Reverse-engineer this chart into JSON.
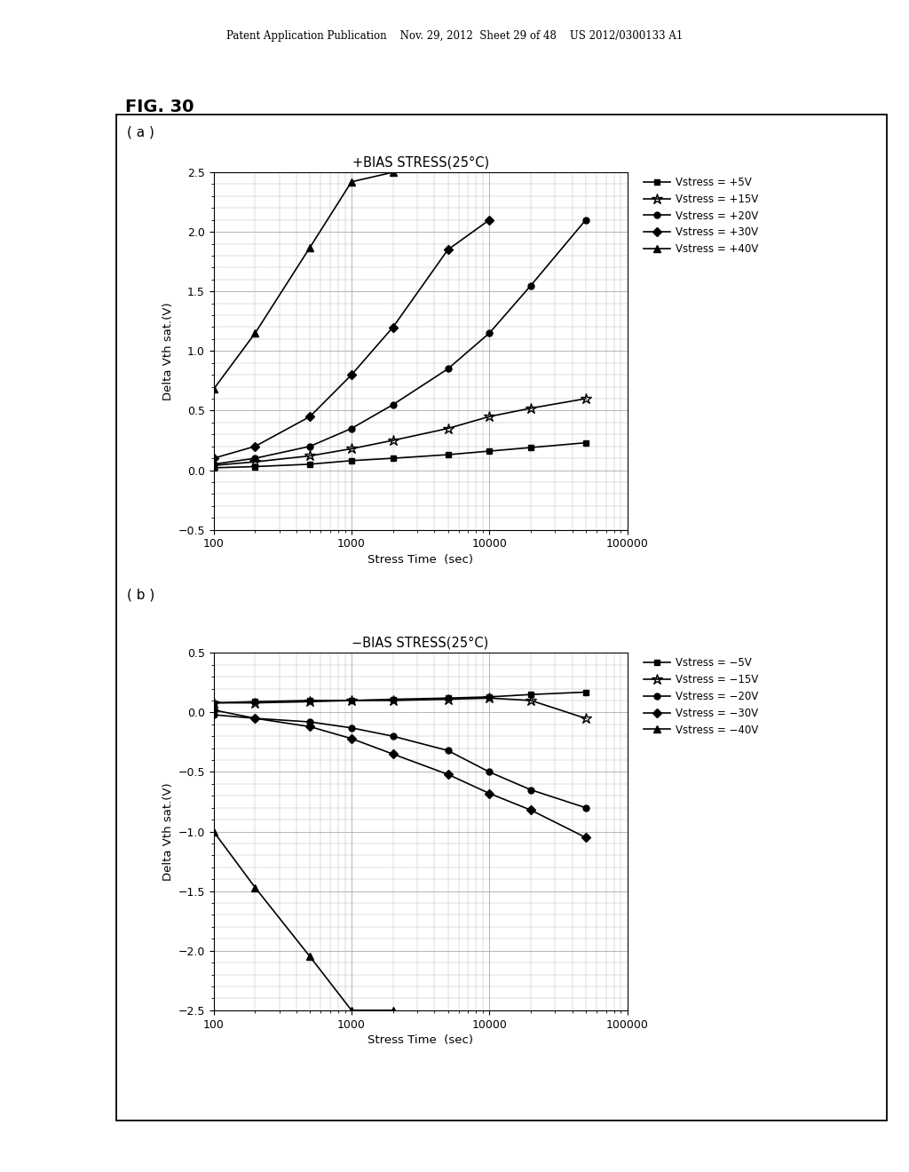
{
  "fig_label": "FIG. 30",
  "header_text": "Patent Application Publication    Nov. 29, 2012  Sheet 29 of 48    US 2012/0300133 A1",
  "panel_a": {
    "title": "+BIAS STRESS(25°C)",
    "xlabel": "Stress Time  (sec)",
    "ylabel": "Delta Vth sat.(V)",
    "xlim": [
      100,
      100000
    ],
    "ylim": [
      -0.5,
      2.5
    ],
    "yticks": [
      -0.5,
      0.0,
      0.5,
      1.0,
      1.5,
      2.0,
      2.5
    ],
    "series": [
      {
        "label": "Vstress = +5V",
        "marker": "s",
        "x": [
          100,
          200,
          500,
          1000,
          2000,
          5000,
          10000,
          20000,
          50000
        ],
        "y": [
          0.02,
          0.03,
          0.05,
          0.08,
          0.1,
          0.13,
          0.16,
          0.19,
          0.23
        ]
      },
      {
        "label": "Vstress = +15V",
        "marker": "*",
        "x": [
          100,
          200,
          500,
          1000,
          2000,
          5000,
          10000,
          20000,
          50000
        ],
        "y": [
          0.04,
          0.07,
          0.12,
          0.18,
          0.25,
          0.35,
          0.45,
          0.52,
          0.6
        ]
      },
      {
        "label": "Vstress = +20V",
        "marker": "o",
        "x": [
          100,
          200,
          500,
          1000,
          2000,
          5000,
          10000,
          20000,
          50000
        ],
        "y": [
          0.05,
          0.1,
          0.2,
          0.35,
          0.55,
          0.85,
          1.15,
          1.55,
          2.1
        ]
      },
      {
        "label": "Vstress = +30V",
        "marker": "D",
        "x": [
          100,
          200,
          500,
          1000,
          2000,
          5000,
          10000
        ],
        "y": [
          0.1,
          0.2,
          0.45,
          0.8,
          1.2,
          1.85,
          2.1
        ]
      },
      {
        "label": "Vstress = +40V",
        "marker": "^",
        "x": [
          100,
          200,
          500,
          1000,
          2000
        ],
        "y": [
          0.68,
          1.15,
          1.87,
          2.42,
          2.5
        ]
      }
    ]
  },
  "panel_b": {
    "title": "−BIAS STRESS(25°C)",
    "xlabel": "Stress Time  (sec)",
    "ylabel": "Delta Vth sat.(V)",
    "xlim": [
      100,
      100000
    ],
    "ylim": [
      -2.5,
      0.5
    ],
    "yticks": [
      -2.5,
      -2.0,
      -1.5,
      -1.0,
      -0.5,
      0.0,
      0.5
    ],
    "series": [
      {
        "label": "Vstress = −5V",
        "marker": "s",
        "x": [
          100,
          200,
          500,
          1000,
          2000,
          5000,
          10000,
          20000,
          50000
        ],
        "y": [
          0.08,
          0.09,
          0.1,
          0.1,
          0.11,
          0.12,
          0.13,
          0.15,
          0.17
        ]
      },
      {
        "label": "Vstress = −15V",
        "marker": "*",
        "x": [
          100,
          200,
          500,
          1000,
          2000,
          5000,
          10000,
          20000,
          50000
        ],
        "y": [
          0.08,
          0.08,
          0.09,
          0.1,
          0.1,
          0.11,
          0.12,
          0.1,
          -0.05
        ]
      },
      {
        "label": "Vstress = −20V",
        "marker": "o",
        "x": [
          100,
          200,
          500,
          1000,
          2000,
          5000,
          10000,
          20000,
          50000
        ],
        "y": [
          -0.02,
          -0.05,
          -0.08,
          -0.13,
          -0.2,
          -0.32,
          -0.5,
          -0.65,
          -0.8
        ]
      },
      {
        "label": "Vstress = −30V",
        "marker": "D",
        "x": [
          100,
          200,
          500,
          1000,
          2000,
          5000,
          10000,
          20000,
          50000
        ],
        "y": [
          0.02,
          -0.05,
          -0.12,
          -0.22,
          -0.35,
          -0.52,
          -0.68,
          -0.82,
          -1.05
        ]
      },
      {
        "label": "Vstress = −40V",
        "marker": "^",
        "x": [
          100,
          200,
          500,
          1000,
          2000
        ],
        "y": [
          -1.0,
          -1.47,
          -2.05,
          -2.5,
          -2.5
        ]
      }
    ]
  },
  "background_color": "#ffffff",
  "grid_color": "#aaaaaa",
  "markers": [
    "s",
    "*",
    "o",
    "D",
    "^"
  ],
  "marker_sizes": [
    5,
    9,
    5,
    5,
    6
  ]
}
